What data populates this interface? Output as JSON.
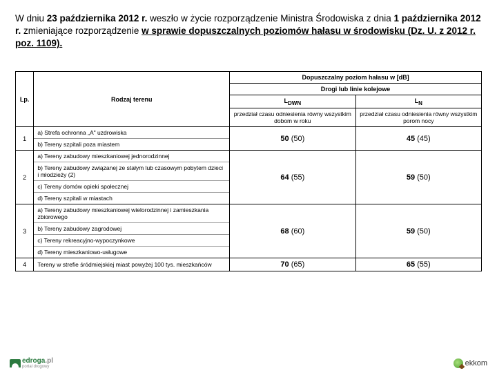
{
  "heading": {
    "p1a": "W dniu ",
    "p1b": "23 października 2012 r.",
    "p1c": " weszło w życie rozporządzenie Ministra Środowiska z dnia ",
    "p1d": "1 października 2012 r.",
    "p1e": " zmieniające rozporządzenie ",
    "p1f": "w sprawie dopuszczalnych poziomów hałasu w środowisku (Dz. U. z 2012 r. poz. 1109)."
  },
  "table": {
    "header": {
      "lp": "Lp.",
      "rodzaj": "Rodzaj terenu",
      "top": "Dopuszczalny poziom hałasu w [dB]",
      "sub": "Drogi lub linie kolejowe",
      "ldwn": "L",
      "ldwn_sub": "DWN",
      "ln": "L",
      "ln_sub": "N",
      "ldwn_desc": "przedział czasu odniesienia równy wszystkim dobom w roku",
      "ln_desc": "przedział czasu odniesienia równy wszystkim porom nocy"
    },
    "rows": [
      {
        "lp": "1",
        "items": [
          "a) Strefa ochronna „A\" uzdrowiska",
          "b) Tereny szpitali poza miastem"
        ],
        "v1": "50",
        "v1p": "(50)",
        "v2": "45",
        "v2p": "(45)"
      },
      {
        "lp": "2",
        "items": [
          "a) Tereny zabudowy mieszkaniowej jednorodzinnej",
          "b) Tereny zabudowy związanej ze stałym lub czasowym pobytem dzieci i młodzieży (2)",
          "c) Tereny domów opieki społecznej",
          "d) Tereny szpitali w miastach"
        ],
        "v1": "64",
        "v1p": "(55)",
        "v2": "59",
        "v2p": "(50)"
      },
      {
        "lp": "3",
        "items": [
          "a) Tereny zabudowy mieszkaniowej wielorodzinnej i zamieszkania zbiorowego",
          "b) Tereny zabudowy zagrodowej",
          "c) Tereny rekreacyjno-wypoczynkowe",
          "d) Tereny mieszkaniowo-usługowe"
        ],
        "v1": "68",
        "v1p": "(60)",
        "v2": "59",
        "v2p": "(50)"
      },
      {
        "lp": "4",
        "items": [
          "Tereny w strefie śródmiejskiej miast powyżej 100 tys. mieszkańców"
        ],
        "v1": "70",
        "v1p": "(65)",
        "v2": "65",
        "v2p": "(55)"
      }
    ]
  },
  "footer": {
    "left1": "edroga",
    "left1b": ".pl",
    "left2": "portal drogowy",
    "right": "ekkom"
  },
  "style": {
    "heading_fontsize": 13.5,
    "table_fontsize": 9,
    "val_fontsize": 11,
    "border_color": "#000000",
    "sep_color": "#999999",
    "bg": "#ffffff",
    "brand_green": "#2b7a3f"
  }
}
